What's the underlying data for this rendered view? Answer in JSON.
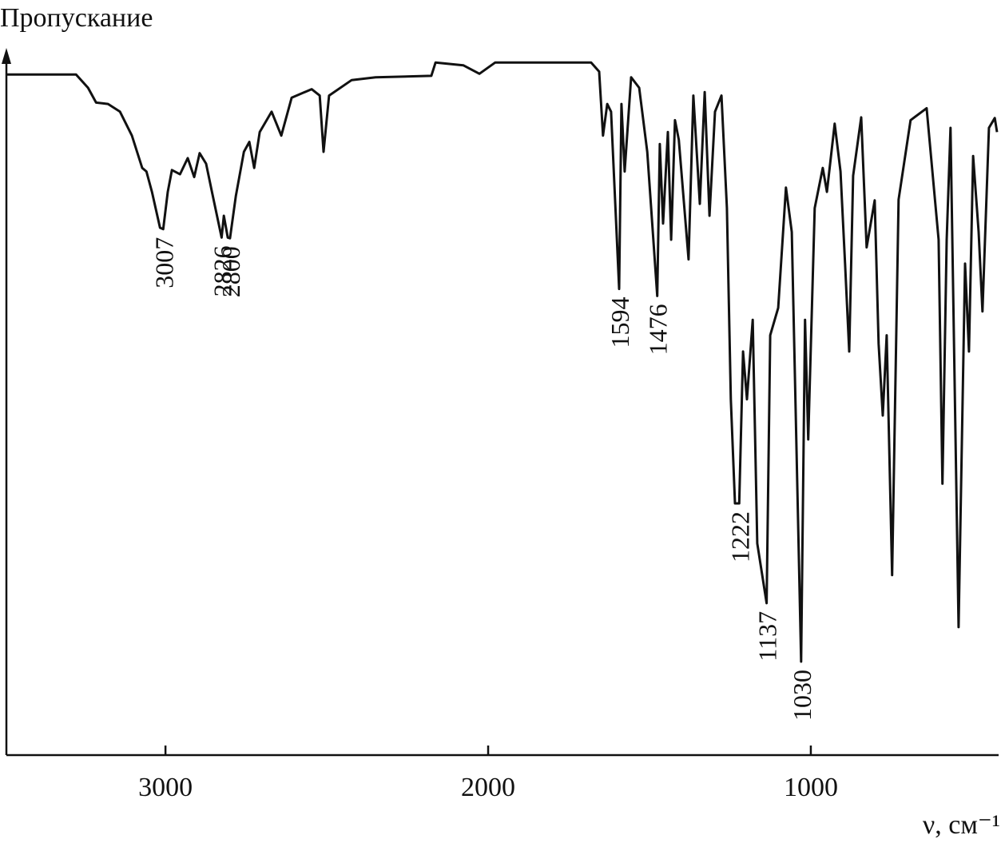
{
  "chart_data": {
    "type": "line",
    "title": "Пропускание",
    "x_label": "ν, см⁻¹",
    "x": [
      3493,
      3277,
      3240,
      3215,
      3178,
      3141,
      3104,
      3072,
      3059,
      3042,
      3017,
      3007,
      2993,
      2980,
      2955,
      2931,
      2911,
      2894,
      2874,
      2856,
      2826,
      2819,
      2807,
      2800,
      2782,
      2757,
      2740,
      2725,
      2708,
      2671,
      2641,
      2609,
      2547,
      2522,
      2510,
      2493,
      2423,
      2349,
      2176,
      2163,
      2077,
      2027,
      1978,
      1780,
      1681,
      1656,
      1644,
      1631,
      1619,
      1594,
      1587,
      1577,
      1557,
      1532,
      1507,
      1476,
      1468,
      1458,
      1443,
      1433,
      1421,
      1409,
      1379,
      1364,
      1344,
      1329,
      1314,
      1297,
      1277,
      1260,
      1248,
      1235,
      1222,
      1210,
      1198,
      1180,
      1166,
      1137,
      1126,
      1101,
      1077,
      1059,
      1030,
      1018,
      1008,
      988,
      963,
      950,
      926,
      908,
      894,
      881,
      869,
      844,
      827,
      802,
      790,
      777,
      765,
      748,
      728,
      691,
      641,
      604,
      592,
      579,
      567,
      542,
      522,
      510,
      497,
      480,
      468,
      448,
      430,
      423
    ],
    "values": [
      96.8,
      96.8,
      94.9,
      92.8,
      92.6,
      91.5,
      88.1,
      83.5,
      83.0,
      80.1,
      75.0,
      74.8,
      80.1,
      83.2,
      82.6,
      84.9,
      82.2,
      85.6,
      84.1,
      80.1,
      73.6,
      76.7,
      73.6,
      73.5,
      79.5,
      85.8,
      87.2,
      83.5,
      88.6,
      91.5,
      88.1,
      93.5,
      94.7,
      93.8,
      85.8,
      93.8,
      96.0,
      96.4,
      96.6,
      98.5,
      98.1,
      96.9,
      98.5,
      98.5,
      98.5,
      97.2,
      88.1,
      92.6,
      91.5,
      66.3,
      92.6,
      83.0,
      96.4,
      94.9,
      85.8,
      65.3,
      86.9,
      75.6,
      88.6,
      73.3,
      90.3,
      87.5,
      70.5,
      93.8,
      78.4,
      94.3,
      76.7,
      91.5,
      93.8,
      77.8,
      50.6,
      35.8,
      35.8,
      57.4,
      50.6,
      61.9,
      30.1,
      21.6,
      59.7,
      63.6,
      80.7,
      74.4,
      13.3,
      61.9,
      44.9,
      77.8,
      83.5,
      80.1,
      89.8,
      83.0,
      69.9,
      57.4,
      82.4,
      90.7,
      72.2,
      78.9,
      58.5,
      48.3,
      59.7,
      25.6,
      79.0,
      90.3,
      92.0,
      73.3,
      38.6,
      73.3,
      89.2,
      18.2,
      69.9,
      57.4,
      85.2,
      74.4,
      63.1,
      89.2,
      90.6,
      88.6
    ],
    "color": "#111111",
    "xlim": [
      3493,
      423
    ],
    "ylim": [
      0,
      100
    ],
    "xticks": [
      3000,
      2000,
      1000
    ],
    "peaks": [
      3007,
      2826,
      2800,
      1594,
      1476,
      1222,
      1137,
      1030
    ]
  }
}
